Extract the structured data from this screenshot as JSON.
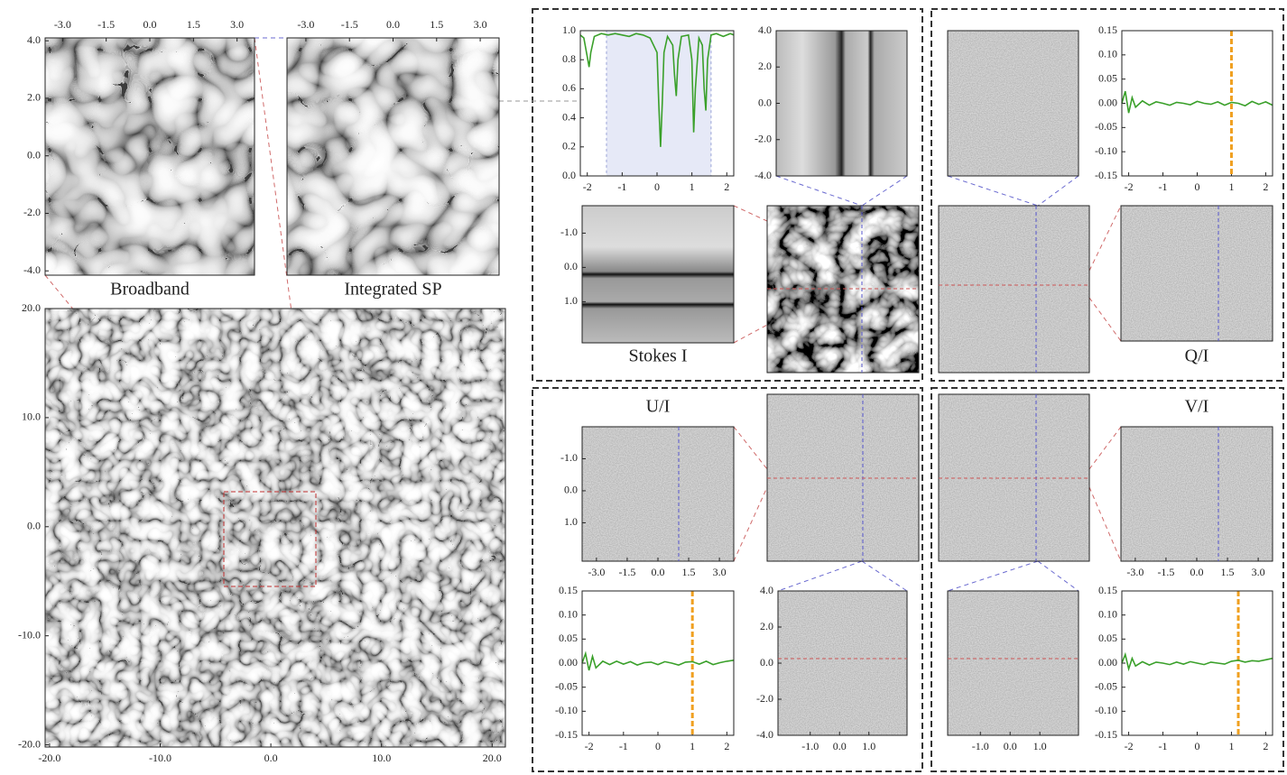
{
  "images": [
    {
      "label": "Broadband",
      "xlim": [
        -3.6,
        3.6
      ],
      "ylim": [
        4.1,
        -4.15
      ],
      "xticks": [
        {
          "value": -3,
          "label": "-3.0"
        },
        {
          "value": -1.5,
          "label": "-1.5"
        },
        {
          "value": 0,
          "label": "0.0"
        },
        {
          "value": 1.5,
          "label": "1.5"
        },
        {
          "value": 3,
          "label": "3.0"
        }
      ],
      "yticks": [
        {
          "value": 4,
          "label": "4.0"
        },
        {
          "value": 2,
          "label": "2.0"
        },
        {
          "value": 0,
          "label": "0.0"
        },
        {
          "value": -2,
          "label": "-2.0"
        },
        {
          "value": -4,
          "label": "-4.0"
        }
      ]
    },
    {
      "label": "Integrated SP",
      "xlim": [
        -3.65,
        3.65
      ],
      "xticks": [
        {
          "value": -3,
          "label": "-3.0"
        },
        {
          "value": -1.5,
          "label": "-1.5"
        },
        {
          "value": 0,
          "label": "0.0"
        },
        {
          "value": 1.5,
          "label": "1.5"
        },
        {
          "value": 3,
          "label": "3.0"
        }
      ]
    },
    {
      "xlim": [
        -20.4,
        21.2
      ],
      "ylim": [
        20,
        -20.2
      ],
      "xticks": [
        {
          "value": -20,
          "label": "-20.0"
        },
        {
          "value": -10,
          "label": "-10.0"
        },
        {
          "value": 0,
          "label": "0.0"
        },
        {
          "value": 10,
          "label": "10.0"
        },
        {
          "value": 20,
          "label": "20.0"
        }
      ],
      "yticks": [
        {
          "value": 20,
          "label": "20.0"
        },
        {
          "value": 10,
          "label": "10.0"
        },
        {
          "value": 0,
          "label": "0.0"
        },
        {
          "value": -10,
          "label": "-10.0"
        },
        {
          "value": -20,
          "label": "-20.0"
        }
      ]
    },
    {
      "ylim": [
        4,
        -4
      ],
      "yticks": [
        {
          "value": 4,
          "label": "4.0"
        },
        {
          "value": 2,
          "label": "2.0"
        },
        {
          "value": 0,
          "label": "0.0"
        },
        {
          "value": -2,
          "label": "-2.0"
        },
        {
          "value": -4,
          "label": "-4.0"
        }
      ]
    },
    {
      "label": "Stokes I",
      "ylim": [
        -1.8,
        2.2
      ],
      "yticks": [
        {
          "value": -1,
          "label": "-1.0"
        },
        {
          "value": 0,
          "label": "0.0"
        },
        {
          "value": 1,
          "label": "1.0"
        }
      ]
    },
    {},
    {},
    {},
    {
      "label": "Q/I"
    },
    {
      "label": "U/I",
      "xlim": [
        -3.7,
        3.7
      ],
      "ylim": [
        -2,
        2.2
      ],
      "xticks": [
        {
          "value": -3,
          "label": "-3.0"
        },
        {
          "value": -1.5,
          "label": "-1.5"
        },
        {
          "value": 0,
          "label": "0.0"
        },
        {
          "value": 1.5,
          "label": "1.5"
        },
        {
          "value": 3,
          "label": "3.0"
        }
      ],
      "yticks": [
        {
          "value": -1,
          "label": "-1.0"
        },
        {
          "value": 0,
          "label": "0.0"
        },
        {
          "value": 1,
          "label": "1.0"
        }
      ]
    },
    {},
    {
      "xlim": [
        -2.1,
        2.3
      ],
      "ylim": [
        4,
        -4
      ],
      "xticks": [
        {
          "value": -1,
          "label": "-1.0"
        },
        {
          "value": 0,
          "label": "0.0"
        },
        {
          "value": 1,
          "label": "1.0"
        }
      ],
      "yticks": [
        {
          "value": 4,
          "label": "4.0"
        },
        {
          "value": 2,
          "label": "2.0"
        },
        {
          "value": 0,
          "label": "0.0"
        },
        {
          "value": -2,
          "label": "-2.0"
        },
        {
          "value": -4,
          "label": "-4.0"
        }
      ]
    },
    {},
    {
      "label": "V/I",
      "xlim": [
        -3.7,
        3.7
      ],
      "xticks": [
        {
          "value": -3,
          "label": "-3.0"
        },
        {
          "value": -1.5,
          "label": "-1.5"
        },
        {
          "value": 0,
          "label": "0.0"
        },
        {
          "value": 1.5,
          "label": "1.5"
        },
        {
          "value": 3,
          "label": "3.0"
        }
      ]
    },
    {
      "xlim": [
        -2.1,
        2.3
      ],
      "xticks": [
        {
          "value": -1,
          "label": "-1.0"
        },
        {
          "value": 0,
          "label": "0.0"
        },
        {
          "value": 1,
          "label": "1.0"
        }
      ]
    }
  ],
  "plots": [
    {
      "xlim": [
        -2.2,
        2.2
      ],
      "ylim": [
        0,
        1
      ],
      "band": [
        -1.45,
        1.55
      ],
      "xticks": [
        -2,
        -1,
        0,
        1,
        2
      ],
      "yticks": [
        {
          "value": 0,
          "label": "0.0"
        },
        {
          "value": 0.2,
          "label": "0.2"
        },
        {
          "value": 0.4,
          "label": "0.4"
        },
        {
          "value": 0.6,
          "label": "0.6"
        },
        {
          "value": 0.8,
          "label": "0.8"
        },
        {
          "value": 1,
          "label": "1.0"
        }
      ],
      "x": [
        -2.2,
        -2.1,
        -2.0,
        -1.95,
        -1.9,
        -1.8,
        -1.6,
        -1.4,
        -1.2,
        -1.0,
        -0.8,
        -0.6,
        -0.4,
        -0.2,
        0,
        0.05,
        0.1,
        0.15,
        0.2,
        0.3,
        0.45,
        0.5,
        0.55,
        0.6,
        0.7,
        0.9,
        1.0,
        1.05,
        1.1,
        1.2,
        1.3,
        1.35,
        1.4,
        1.45,
        1.55,
        1.7,
        1.9,
        2.1,
        2.2
      ],
      "values": [
        0.97,
        0.95,
        0.82,
        0.75,
        0.85,
        0.96,
        0.98,
        0.97,
        0.98,
        0.97,
        0.96,
        0.98,
        0.97,
        0.95,
        0.85,
        0.5,
        0.2,
        0.5,
        0.85,
        0.96,
        0.9,
        0.7,
        0.55,
        0.8,
        0.96,
        0.97,
        0.8,
        0.3,
        0.6,
        0.95,
        0.9,
        0.6,
        0.45,
        0.8,
        0.97,
        0.98,
        0.96,
        0.98,
        0.97
      ]
    },
    {
      "xlim": [
        -2.2,
        2.2
      ],
      "ylim": [
        -0.15,
        0.15
      ],
      "marker_x": 1,
      "xticks": [
        -2,
        -1,
        0,
        1,
        2
      ],
      "yticks": [
        {
          "value": 0.15,
          "label": "0.15"
        },
        {
          "value": 0.1,
          "label": "0.10"
        },
        {
          "value": 0.05,
          "label": "0.05"
        },
        {
          "value": 0,
          "label": "0.00"
        },
        {
          "value": -0.05,
          "label": "-0.05"
        },
        {
          "value": -0.1,
          "label": "-0.10"
        },
        {
          "value": -0.15,
          "label": "-0.15"
        }
      ],
      "x": [
        -2.2,
        -2.1,
        -2.0,
        -1.9,
        -1.8,
        -1.6,
        -1.4,
        -1.2,
        -1.0,
        -0.8,
        -0.6,
        -0.4,
        -0.2,
        0,
        0.2,
        0.4,
        0.6,
        0.8,
        1.0,
        1.2,
        1.4,
        1.6,
        1.8,
        2.0,
        2.2
      ],
      "values": [
        0.0,
        0.025,
        -0.02,
        0.012,
        -0.008,
        0.005,
        -0.004,
        0.003,
        0.0,
        -0.004,
        0.002,
        0.0,
        -0.003,
        0.004,
        0.0,
        -0.002,
        0.003,
        -0.004,
        0.002,
        0.0,
        -0.005,
        0.004,
        -0.002,
        0.003,
        -0.004
      ]
    },
    {
      "xlim": [
        -2.2,
        2.2
      ],
      "ylim": [
        -0.15,
        0.15
      ],
      "marker_x": 1,
      "xticks": [
        -2,
        -1,
        0,
        1,
        2
      ],
      "yticks": [
        {
          "value": 0.15,
          "label": "0.15"
        },
        {
          "value": 0.1,
          "label": "0.10"
        },
        {
          "value": 0.05,
          "label": "0.05"
        },
        {
          "value": 0,
          "label": "0.00"
        },
        {
          "value": -0.05,
          "label": "-0.05"
        },
        {
          "value": -0.1,
          "label": "-0.10"
        },
        {
          "value": -0.15,
          "label": "-0.15"
        }
      ],
      "x": [
        -2.2,
        -2.1,
        -2.0,
        -1.9,
        -1.8,
        -1.6,
        -1.4,
        -1.2,
        -1.0,
        -0.8,
        -0.6,
        -0.4,
        -0.2,
        0,
        0.2,
        0.4,
        0.6,
        0.8,
        1.0,
        1.2,
        1.4,
        1.6,
        1.8,
        2.0,
        2.2
      ],
      "values": [
        0.0,
        0.02,
        -0.015,
        0.014,
        -0.01,
        0.004,
        -0.003,
        0.004,
        -0.002,
        0.003,
        -0.004,
        0.001,
        0.002,
        -0.003,
        0.003,
        0.0,
        -0.004,
        0.002,
        0.003,
        -0.002,
        0.004,
        -0.003,
        0.001,
        0.004,
        0.006
      ]
    },
    {
      "xlim": [
        -2.2,
        2.2
      ],
      "ylim": [
        -0.15,
        0.15
      ],
      "marker_x": 1.2,
      "xticks": [
        -2,
        -1,
        0,
        1,
        2
      ],
      "yticks": [
        {
          "value": 0.15,
          "label": "0.15"
        },
        {
          "value": 0.1,
          "label": "0.10"
        },
        {
          "value": 0.05,
          "label": "0.05"
        },
        {
          "value": 0,
          "label": "0.00"
        },
        {
          "value": -0.05,
          "label": "-0.05"
        },
        {
          "value": -0.1,
          "label": "-0.10"
        },
        {
          "value": -0.15,
          "label": "-0.15"
        }
      ],
      "x": [
        -2.2,
        -2.1,
        -2.0,
        -1.9,
        -1.8,
        -1.6,
        -1.4,
        -1.2,
        -1.0,
        -0.8,
        -0.6,
        -0.4,
        -0.2,
        0,
        0.2,
        0.4,
        0.6,
        0.8,
        1.0,
        1.2,
        1.4,
        1.6,
        1.8,
        2.0,
        2.2
      ],
      "values": [
        0.0,
        0.018,
        -0.012,
        0.01,
        -0.006,
        0.003,
        -0.004,
        0.002,
        0.0,
        -0.003,
        0.002,
        -0.002,
        0.003,
        0.0,
        -0.003,
        0.002,
        0.0,
        -0.002,
        0.004,
        0.006,
        0.002,
        0.005,
        0.004,
        0.007,
        0.01
      ]
    }
  ]
}
